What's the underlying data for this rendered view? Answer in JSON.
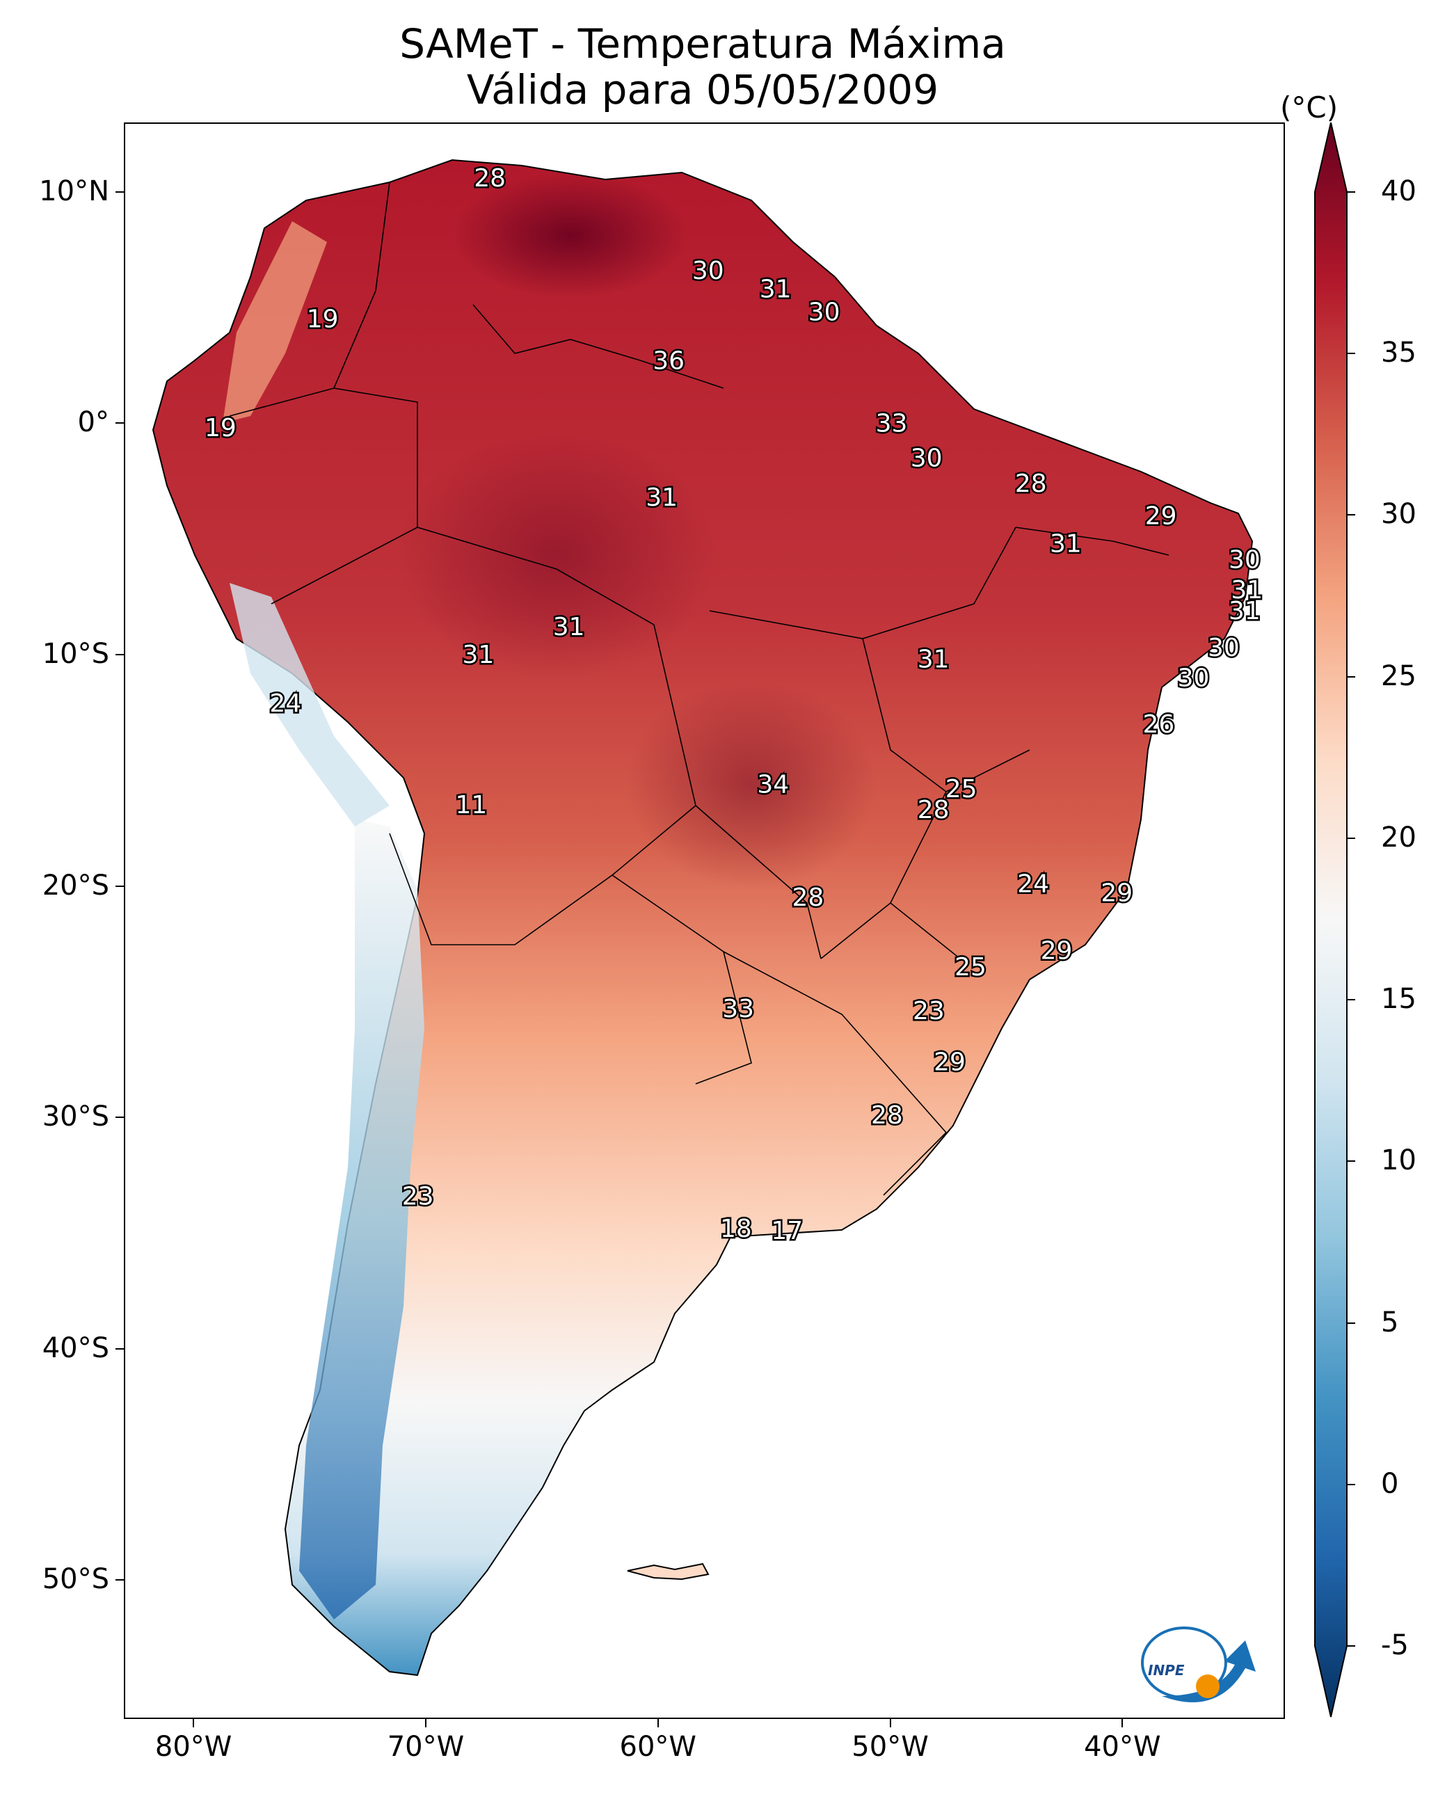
{
  "title": {
    "line1": "SAMeT - Temperatura Máxima",
    "line2": "Válida para 05/05/2009"
  },
  "map": {
    "lon_ticks": [
      "80°W",
      "70°W",
      "60°W",
      "50°W",
      "40°W"
    ],
    "lat_ticks": [
      "10°N",
      "0°",
      "10°S",
      "20°S",
      "30°S",
      "40°S",
      "50°S"
    ],
    "lon_range": [
      -83,
      -33
    ],
    "lat_range": [
      13,
      -56
    ]
  },
  "colorbar": {
    "unit": "(°C)",
    "ticks": [
      "40",
      "35",
      "30",
      "25",
      "20",
      "15",
      "10",
      "5",
      "0",
      "-5"
    ],
    "range": [
      -5,
      40
    ],
    "colors": [
      "#053061",
      "#2166ac",
      "#4393c3",
      "#92c5de",
      "#d1e5f0",
      "#f7f7f7",
      "#fddbc7",
      "#f4a582",
      "#d6604d",
      "#b2182b",
      "#67001f"
    ]
  },
  "station_labels": [
    {
      "value": "28",
      "lon": -67.3,
      "lat": 10.6
    },
    {
      "value": "19",
      "lon": -74.5,
      "lat": 4.5
    },
    {
      "value": "30",
      "lon": -57.9,
      "lat": 6.6
    },
    {
      "value": "31",
      "lon": -55.0,
      "lat": 5.8
    },
    {
      "value": "30",
      "lon": -52.9,
      "lat": 4.8
    },
    {
      "value": "36",
      "lon": -59.6,
      "lat": 2.7
    },
    {
      "value": "19",
      "lon": -78.9,
      "lat": -0.2
    },
    {
      "value": "33",
      "lon": -50.0,
      "lat": 0.0
    },
    {
      "value": "30",
      "lon": -48.5,
      "lat": -1.5
    },
    {
      "value": "28",
      "lon": -44.0,
      "lat": -2.6
    },
    {
      "value": "31",
      "lon": -59.9,
      "lat": -3.2
    },
    {
      "value": "29",
      "lon": -38.4,
      "lat": -4.0
    },
    {
      "value": "31",
      "lon": -42.5,
      "lat": -5.2
    },
    {
      "value": "30",
      "lon": -34.8,
      "lat": -5.9
    },
    {
      "value": "31",
      "lon": -34.7,
      "lat": -7.2
    },
    {
      "value": "31",
      "lon": -34.8,
      "lat": -8.1
    },
    {
      "value": "31",
      "lon": -63.9,
      "lat": -8.8
    },
    {
      "value": "30",
      "lon": -35.7,
      "lat": -9.7
    },
    {
      "value": "31",
      "lon": -67.8,
      "lat": -10.0
    },
    {
      "value": "31",
      "lon": -48.2,
      "lat": -10.2
    },
    {
      "value": "30",
      "lon": -37.0,
      "lat": -11.0
    },
    {
      "value": "24",
      "lon": -76.1,
      "lat": -12.1
    },
    {
      "value": "26",
      "lon": -38.5,
      "lat": -13.0
    },
    {
      "value": "34",
      "lon": -55.1,
      "lat": -15.6
    },
    {
      "value": "25",
      "lon": -47.0,
      "lat": -15.8
    },
    {
      "value": "11",
      "lon": -68.1,
      "lat": -16.5
    },
    {
      "value": "28",
      "lon": -48.2,
      "lat": -16.7
    },
    {
      "value": "24",
      "lon": -43.9,
      "lat": -19.9
    },
    {
      "value": "29",
      "lon": -40.3,
      "lat": -20.3
    },
    {
      "value": "28",
      "lon": -53.6,
      "lat": -20.5
    },
    {
      "value": "29",
      "lon": -42.9,
      "lat": -22.8
    },
    {
      "value": "25",
      "lon": -46.6,
      "lat": -23.5
    },
    {
      "value": "33",
      "lon": -56.6,
      "lat": -25.3
    },
    {
      "value": "23",
      "lon": -48.4,
      "lat": -25.4
    },
    {
      "value": "29",
      "lon": -47.5,
      "lat": -27.6
    },
    {
      "value": "28",
      "lon": -50.2,
      "lat": -29.9
    },
    {
      "value": "23",
      "lon": -70.4,
      "lat": -33.4
    },
    {
      "value": "18",
      "lon": -56.7,
      "lat": -34.8
    },
    {
      "value": "17",
      "lon": -54.5,
      "lat": -34.9
    }
  ],
  "logo": {
    "text": "INPE"
  }
}
